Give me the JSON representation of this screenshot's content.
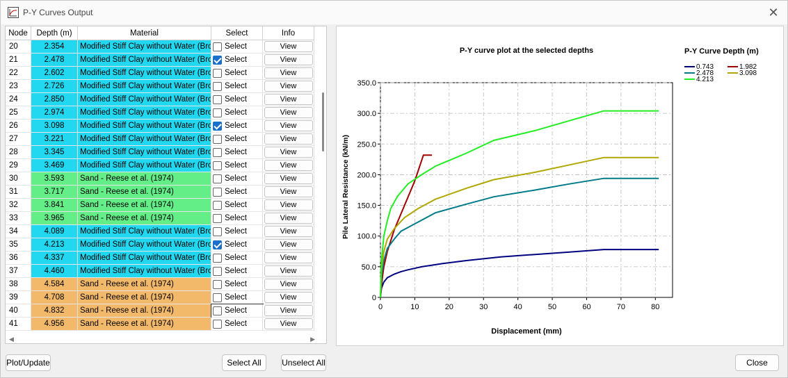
{
  "window": {
    "title": "P-Y Curves Output"
  },
  "table": {
    "headers": [
      "Node",
      "Depth (m)",
      "Material",
      "Select",
      "Info"
    ],
    "select_label": "Select",
    "view_label": "View",
    "rows": [
      {
        "node": "20",
        "depth": "2.354",
        "material": "Modified Stiff Clay without Water (Brown)",
        "checked": false,
        "color": "#22d7f0"
      },
      {
        "node": "21",
        "depth": "2.478",
        "material": "Modified Stiff Clay without Water (Brown)",
        "checked": true,
        "color": "#22d7f0"
      },
      {
        "node": "22",
        "depth": "2.602",
        "material": "Modified Stiff Clay without Water (Brown)",
        "checked": false,
        "color": "#22d7f0"
      },
      {
        "node": "23",
        "depth": "2.726",
        "material": "Modified Stiff Clay without Water (Brown)",
        "checked": false,
        "color": "#22d7f0"
      },
      {
        "node": "24",
        "depth": "2.850",
        "material": "Modified Stiff Clay without Water (Brown)",
        "checked": false,
        "color": "#22d7f0"
      },
      {
        "node": "25",
        "depth": "2.974",
        "material": "Modified Stiff Clay without Water (Brown)",
        "checked": false,
        "color": "#22d7f0"
      },
      {
        "node": "26",
        "depth": "3.098",
        "material": "Modified Stiff Clay without Water (Brown)",
        "checked": true,
        "color": "#22d7f0"
      },
      {
        "node": "27",
        "depth": "3.221",
        "material": "Modified Stiff Clay without Water (Brown)",
        "checked": false,
        "color": "#22d7f0"
      },
      {
        "node": "28",
        "depth": "3.345",
        "material": "Modified Stiff Clay without Water (Brown)",
        "checked": false,
        "color": "#22d7f0"
      },
      {
        "node": "29",
        "depth": "3.469",
        "material": "Modified Stiff Clay without Water (Brown)",
        "checked": false,
        "color": "#22d7f0"
      },
      {
        "node": "30",
        "depth": "3.593",
        "material": "Sand - Reese et al. (1974)",
        "checked": false,
        "color": "#64ee88"
      },
      {
        "node": "31",
        "depth": "3.717",
        "material": "Sand - Reese et al. (1974)",
        "checked": false,
        "color": "#64ee88"
      },
      {
        "node": "32",
        "depth": "3.841",
        "material": "Sand - Reese et al. (1974)",
        "checked": false,
        "color": "#64ee88"
      },
      {
        "node": "33",
        "depth": "3.965",
        "material": "Sand - Reese et al. (1974)",
        "checked": false,
        "color": "#64ee88"
      },
      {
        "node": "34",
        "depth": "4.089",
        "material": "Modified Stiff Clay without Water (Brown)",
        "checked": false,
        "color": "#22d7f0"
      },
      {
        "node": "35",
        "depth": "4.213",
        "material": "Modified Stiff Clay without Water (Brown)",
        "checked": true,
        "color": "#22d7f0"
      },
      {
        "node": "36",
        "depth": "4.337",
        "material": "Modified Stiff Clay without Water (Brown)",
        "checked": false,
        "color": "#22d7f0"
      },
      {
        "node": "37",
        "depth": "4.460",
        "material": "Modified Stiff Clay without Water (Brown)",
        "checked": false,
        "color": "#22d7f0"
      },
      {
        "node": "38",
        "depth": "4.584",
        "material": "Sand - Reese et al. (1974)",
        "checked": false,
        "color": "#f2b96a"
      },
      {
        "node": "39",
        "depth": "4.708",
        "material": "Sand - Reese et al. (1974)",
        "checked": false,
        "color": "#f2b96a"
      },
      {
        "node": "40",
        "depth": "4.832",
        "material": "Sand - Reese et al. (1974)",
        "checked": false,
        "color": "#f2b96a"
      },
      {
        "node": "41",
        "depth": "4.956",
        "material": "Sand - Reese et al. (1974)",
        "checked": false,
        "color": "#f2b96a"
      }
    ]
  },
  "buttons": {
    "plot_update": "Plot/Update",
    "select_all": "Select All",
    "unselect_all": "Unselect All",
    "close": "Close"
  },
  "chart_data": {
    "type": "line",
    "title": "P-Y curve plot at the selected depths",
    "xlabel": "Displacement (mm)",
    "ylabel": "Pile Lateral Resistance (kN/m)",
    "xlim": [
      0,
      85
    ],
    "ylim": [
      0,
      350
    ],
    "xticks": [
      "0",
      "10",
      "20",
      "30",
      "40",
      "50",
      "60",
      "70",
      "80"
    ],
    "yticks": [
      "0",
      "50.0",
      "100.0",
      "150.0",
      "200.0",
      "250.0",
      "300.0",
      "350.0"
    ],
    "grid": true,
    "legend_title": "P-Y Curve Depth (m)",
    "legend_position": "right",
    "series": [
      {
        "name": "0.743",
        "color": "#000080",
        "points": [
          [
            0,
            0
          ],
          [
            0.3,
            15
          ],
          [
            1,
            25
          ],
          [
            2,
            32
          ],
          [
            4,
            38
          ],
          [
            6,
            42
          ],
          [
            8,
            45
          ],
          [
            12,
            50
          ],
          [
            18,
            55
          ],
          [
            25,
            60
          ],
          [
            35,
            66
          ],
          [
            45,
            70
          ],
          [
            55,
            74
          ],
          [
            65,
            78
          ],
          [
            81,
            78
          ]
        ]
      },
      {
        "name": "1.982",
        "color": "#a00000",
        "points": [
          [
            0,
            0
          ],
          [
            0.5,
            30
          ],
          [
            1,
            50
          ],
          [
            2,
            75
          ],
          [
            4,
            110
          ],
          [
            7,
            150
          ],
          [
            10,
            190
          ],
          [
            12.5,
            232
          ],
          [
            15,
            232
          ]
        ]
      },
      {
        "name": "2.478",
        "color": "#007b8a",
        "points": [
          [
            0,
            0
          ],
          [
            0.3,
            35
          ],
          [
            1,
            60
          ],
          [
            2,
            80
          ],
          [
            4,
            95
          ],
          [
            6,
            108
          ],
          [
            10,
            120
          ],
          [
            16,
            138
          ],
          [
            25,
            152
          ],
          [
            33,
            164
          ],
          [
            45,
            175
          ],
          [
            55,
            185
          ],
          [
            65,
            194
          ],
          [
            81,
            194
          ]
        ]
      },
      {
        "name": "3.098",
        "color": "#b0a800",
        "points": [
          [
            0,
            0
          ],
          [
            0.3,
            45
          ],
          [
            1,
            75
          ],
          [
            2,
            95
          ],
          [
            4,
            112
          ],
          [
            7,
            130
          ],
          [
            11,
            145
          ],
          [
            16,
            160
          ],
          [
            25,
            178
          ],
          [
            33,
            192
          ],
          [
            45,
            204
          ],
          [
            55,
            216
          ],
          [
            65,
            228
          ],
          [
            81,
            228
          ]
        ]
      },
      {
        "name": "4.213",
        "color": "#22ee22",
        "points": [
          [
            0,
            0
          ],
          [
            0.3,
            60
          ],
          [
            1,
            100
          ],
          [
            2,
            125
          ],
          [
            3,
            145
          ],
          [
            5,
            165
          ],
          [
            8,
            185
          ],
          [
            12,
            200
          ],
          [
            16,
            214
          ],
          [
            25,
            235
          ],
          [
            33,
            256
          ],
          [
            45,
            272
          ],
          [
            55,
            288
          ],
          [
            65,
            304
          ],
          [
            81,
            304
          ]
        ]
      }
    ]
  }
}
